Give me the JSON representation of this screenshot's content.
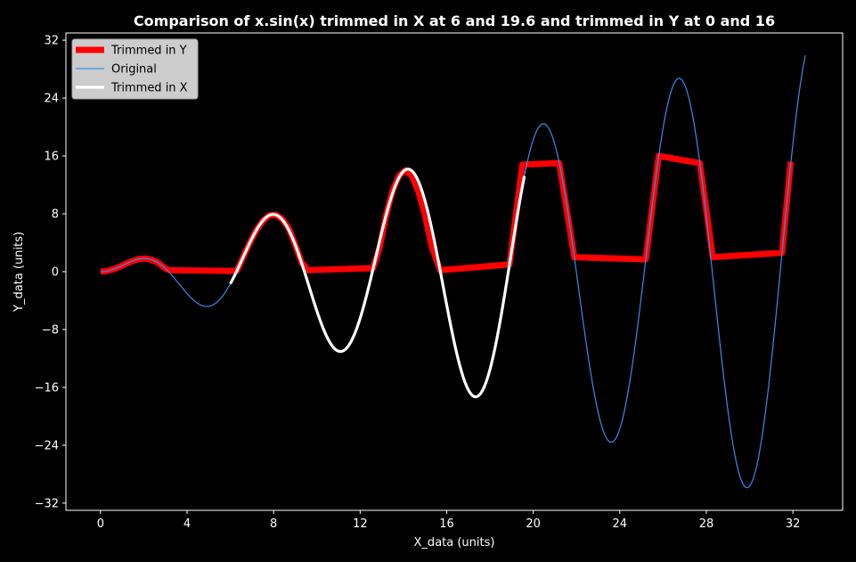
{
  "chart_data": {
    "type": "line",
    "title": "Comparison of x.sin(x) trimmed in X at 6 and 19.6 and trimmed in Y at 0 and 16",
    "xlabel": "X_data (units)",
    "ylabel": "Y_data (units)",
    "xlim": [
      -1.6,
      34.3
    ],
    "ylim": [
      -33,
      33
    ],
    "xticks": [
      0,
      4,
      8,
      12,
      16,
      20,
      24,
      28,
      32
    ],
    "yticks": [
      -32,
      -24,
      -16,
      -8,
      0,
      8,
      16,
      24,
      32
    ],
    "xtick_labels": [
      "0",
      "4",
      "8",
      "12",
      "16",
      "20",
      "24",
      "28",
      "32"
    ],
    "ytick_labels": [
      "−32",
      "−24",
      "−16",
      "−8",
      "0",
      "8",
      "16",
      "24",
      "32"
    ],
    "grid": false,
    "legend_position": "top-left",
    "background": "#000000",
    "series": [
      {
        "name": "Trimmed in Y",
        "color": "#ff0000",
        "points": [
          [
            0,
            0
          ],
          [
            0.3,
            0.09
          ],
          [
            0.6,
            0.34
          ],
          [
            0.9,
            0.7
          ],
          [
            1.2,
            1.12
          ],
          [
            1.5,
            1.5
          ],
          [
            1.8,
            1.75
          ],
          [
            2.1,
            1.81
          ],
          [
            2.4,
            1.62
          ],
          [
            2.7,
            1.15
          ],
          [
            3.0,
            0.42
          ],
          [
            3.2,
            0.2
          ],
          [
            6.0,
            0.1
          ],
          [
            6.3,
            0.11
          ],
          [
            6.6,
            2.06
          ],
          [
            6.9,
            4.0
          ],
          [
            7.2,
            5.73
          ],
          [
            7.5,
            7.03
          ],
          [
            7.8,
            7.77
          ],
          [
            8.1,
            7.86
          ],
          [
            8.4,
            7.26
          ],
          [
            8.7,
            5.99
          ],
          [
            9.0,
            3.71
          ],
          [
            9.3,
            1.2
          ],
          [
            9.6,
            0.2
          ],
          [
            12.6,
            0.5
          ],
          [
            12.9,
            3.3
          ],
          [
            13.2,
            7.81
          ],
          [
            13.5,
            11.2
          ],
          [
            13.8,
            13.3
          ],
          [
            14.1,
            14.0
          ],
          [
            14.4,
            13.2
          ],
          [
            14.7,
            11.0
          ],
          [
            15.0,
            7.8
          ],
          [
            15.3,
            3.5
          ],
          [
            15.7,
            0.2
          ],
          [
            18.9,
            1.0
          ],
          [
            19.5,
            14.8
          ],
          [
            21.2,
            15.0
          ],
          [
            21.9,
            2.0
          ],
          [
            25.2,
            1.7
          ],
          [
            25.8,
            16.0
          ],
          [
            27.7,
            15.0
          ],
          [
            28.3,
            2.0
          ],
          [
            31.5,
            2.6
          ],
          [
            31.9,
            15.2
          ]
        ]
      },
      {
        "name": "Original",
        "color": "#3b8beb",
        "function": "x*sin(x)",
        "x_range": [
          0,
          32.6
        ]
      },
      {
        "name": "Trimmed in X",
        "color": "#ffffff",
        "function": "x*sin(x)",
        "x_range": [
          6,
          19.6
        ]
      }
    ]
  }
}
